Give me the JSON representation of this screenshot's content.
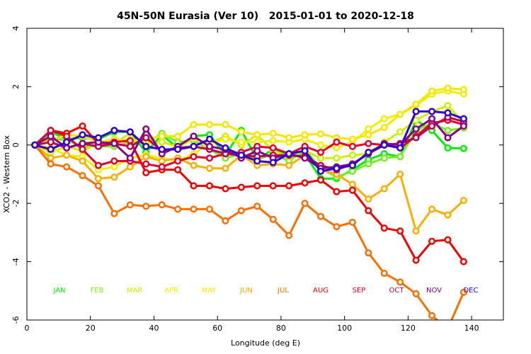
{
  "chart_data": {
    "type": "line",
    "title": "45N-50N Eurasia (Ver 10)   2015-01-01 to 2020-12-18",
    "xlabel": "Longitude (deg E)",
    "ylabel": "XCO2 - Western Box",
    "xlim": [
      0,
      150
    ],
    "ylim": [
      -6,
      4
    ],
    "xticks": [
      0,
      20,
      40,
      60,
      80,
      100,
      120,
      140
    ],
    "yticks": [
      -6,
      -4,
      -2,
      0,
      2,
      4
    ],
    "xtick_labels": [
      "0",
      "20",
      "40",
      "60",
      "80",
      "100",
      "120",
      "140"
    ],
    "ytick_labels": [
      "-6",
      "-4",
      "-2",
      "0",
      "2",
      "4"
    ],
    "x": [
      2.5,
      7.5,
      12.5,
      17.5,
      22.5,
      27.5,
      32.5,
      37.5,
      42.5,
      47.5,
      52.5,
      57.5,
      62.5,
      67.5,
      72.5,
      77.5,
      82.5,
      87.5,
      92.5,
      97.5,
      102.5,
      107.5,
      112.5,
      117.5,
      122.5,
      127.5,
      132.5,
      137.5
    ],
    "legend_position": "bottom",
    "legend": [
      {
        "label": "JAN",
        "color": "#00ee00"
      },
      {
        "label": "FEB",
        "color": "#77ee22"
      },
      {
        "label": "MAR",
        "color": "#ccf000"
      },
      {
        "label": "APR",
        "color": "#f0f000"
      },
      {
        "label": "MAY",
        "color": "#f8e600"
      },
      {
        "label": "JUN",
        "color": "#f8b000"
      },
      {
        "label": "JUL",
        "color": "#f87000"
      },
      {
        "label": "AUG",
        "color": "#ee0000"
      },
      {
        "label": "SEP",
        "color": "#e00030"
      },
      {
        "label": "OCT",
        "color": "#bb0050"
      },
      {
        "label": "NOV",
        "color": "#880088"
      },
      {
        "label": "DEC",
        "color": "#3300cc"
      }
    ],
    "series": [
      {
        "name": "JAN",
        "color": "#00ee00",
        "values": [
          0,
          0.45,
          0.2,
          0.25,
          0.2,
          0.45,
          0.45,
          -0.25,
          0.35,
          -0.1,
          0.3,
          0.35,
          -0.35,
          0.5,
          -0.5,
          -0.15,
          -0.4,
          -0.3,
          -1.15,
          -1.15,
          -0.85,
          -0.5,
          -0.3,
          -0.4,
          0.85,
          0.5,
          -0.1,
          -0.12
        ]
      },
      {
        "name": "FEB",
        "color": "#77ee22",
        "values": [
          0,
          0.25,
          0.15,
          -0.05,
          -0.05,
          -0.05,
          0.1,
          0.05,
          0.4,
          0.1,
          0.15,
          -0.15,
          -0.45,
          -0.3,
          -0.5,
          -0.3,
          -0.55,
          -0.15,
          -0.8,
          -1.1,
          -0.9,
          -0.65,
          -0.45,
          -0.4,
          0.5,
          0.75,
          0.5,
          0.58
        ]
      },
      {
        "name": "MAR",
        "color": "#ccf000",
        "values": [
          0,
          -0.25,
          -0.05,
          -0.2,
          0.05,
          0.05,
          0.4,
          0.05,
          0.1,
          -0.05,
          0.2,
          0.05,
          0.3,
          0.0,
          0.35,
          -0.2,
          -0.4,
          -0.2,
          -0.45,
          -0.45,
          -0.35,
          -0.3,
          0.1,
          0.45,
          0.85,
          1.15,
          1.35,
          0.75
        ]
      },
      {
        "name": "APR",
        "color": "#f0f000",
        "values": [
          0,
          -0.1,
          -0.35,
          -0.4,
          -0.85,
          -0.75,
          -0.45,
          -0.35,
          -0.45,
          -0.55,
          -0.3,
          0.05,
          0.2,
          0.1,
          0.1,
          0.15,
          0.1,
          0.2,
          0.0,
          -0.1,
          0.1,
          0.55,
          0.9,
          1.05,
          1.35,
          1.75,
          1.85,
          1.75
        ]
      },
      {
        "name": "MAY",
        "color": "#f8e600",
        "values": [
          0,
          0.15,
          0.35,
          0.3,
          0.1,
          0.2,
          0.15,
          0.2,
          0.3,
          0.3,
          0.7,
          0.7,
          0.7,
          0.45,
          0.35,
          0.4,
          0.25,
          0.35,
          0.38,
          0.25,
          0.2,
          0.35,
          0.6,
          1.05,
          1.4,
          1.85,
          1.95,
          1.9
        ]
      },
      {
        "name": "JUN",
        "color": "#f8b000",
        "values": [
          0,
          -0.45,
          -0.35,
          -0.55,
          -1.15,
          -1.1,
          -0.75,
          -0.4,
          -0.55,
          -0.45,
          -0.7,
          -0.8,
          -0.8,
          -0.35,
          -0.7,
          -0.65,
          -0.7,
          -0.35,
          -0.85,
          -1.0,
          -1.35,
          -1.85,
          -1.5,
          -1.0,
          -2.95,
          -2.2,
          -2.4,
          -1.9
        ]
      },
      {
        "name": "JUL",
        "color": "#f87000",
        "values": [
          0,
          -0.65,
          -0.75,
          -1.05,
          -1.4,
          -2.35,
          -2.05,
          -2.1,
          -2.05,
          -2.2,
          -2.2,
          -2.2,
          -2.6,
          -2.25,
          -2.1,
          -2.55,
          -3.1,
          -2.0,
          -2.45,
          -2.8,
          -2.65,
          -3.7,
          -4.4,
          -4.7,
          -5.1,
          -5.85,
          -6.3,
          -5.05
        ]
      },
      {
        "name": "AUG",
        "color": "#ee0000",
        "values": [
          0,
          0.5,
          0.4,
          0.65,
          0.05,
          0.1,
          0.15,
          -0.95,
          -0.85,
          -0.85,
          -1.4,
          -1.4,
          -1.5,
          -1.45,
          -1.4,
          -1.4,
          -1.4,
          -1.3,
          -1.2,
          -1.6,
          -1.55,
          -2.25,
          -2.85,
          -2.95,
          -3.95,
          -3.3,
          -3.25,
          -4.0
        ]
      },
      {
        "name": "SEP",
        "color": "#e00030",
        "values": [
          0,
          0.5,
          0.3,
          -0.15,
          -0.7,
          -0.55,
          -0.55,
          -0.65,
          -0.75,
          -0.55,
          -0.4,
          -0.45,
          -0.3,
          -0.25,
          -0.05,
          -0.1,
          -0.3,
          -0.05,
          -0.25,
          0.1,
          -0.05,
          0.05,
          0.0,
          -0.1,
          0.3,
          0.75,
          0.85,
          0.7
        ]
      },
      {
        "name": "OCT",
        "color": "#bb0050",
        "values": [
          0,
          0.1,
          -0.1,
          0.05,
          -0.05,
          0.05,
          -0.05,
          0.25,
          -0.2,
          -0.1,
          -0.05,
          -0.15,
          -0.3,
          -0.35,
          -0.4,
          -0.35,
          -0.35,
          -0.4,
          -0.7,
          -0.85,
          -0.65,
          -0.3,
          0.0,
          0.05,
          0.25,
          0.65,
          0.95,
          0.8
        ]
      },
      {
        "name": "NOV",
        "color": "#880088",
        "values": [
          0,
          0.3,
          -0.1,
          0.05,
          0.1,
          0.05,
          -0.45,
          0.55,
          -0.3,
          -0.05,
          0.3,
          -0.05,
          -0.15,
          -0.45,
          -0.2,
          -0.45,
          -0.3,
          -0.45,
          -0.8,
          -0.75,
          -0.65,
          -0.3,
          0.05,
          0.0,
          0.55,
          0.9,
          0.25,
          0.65
        ]
      },
      {
        "name": "DEC",
        "color": "#3300cc",
        "values": [
          0,
          -0.15,
          0.1,
          0.35,
          0.25,
          0.5,
          0.45,
          -0.05,
          -0.15,
          -0.15,
          -0.05,
          0.2,
          -0.1,
          -0.35,
          -0.55,
          -0.6,
          -0.3,
          -0.2,
          -0.9,
          -0.8,
          -0.7,
          -0.25,
          0.0,
          -0.1,
          1.15,
          1.15,
          1.1,
          0.9
        ]
      }
    ]
  }
}
